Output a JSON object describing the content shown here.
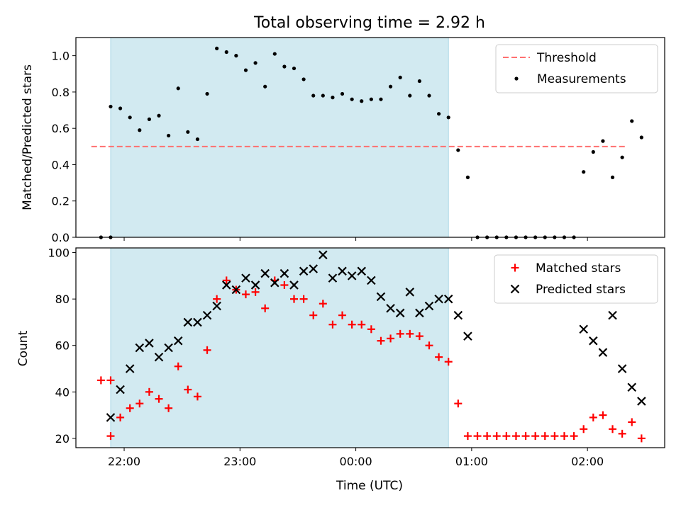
{
  "chart_data": [
    {
      "type": "scatter",
      "title": "Total observing time = 2.92 h",
      "xlabel": "",
      "ylabel": "Matched/Predicted stars",
      "ylim": [
        0,
        1.1
      ],
      "yticks": [
        0.0,
        0.2,
        0.4,
        0.6,
        0.8,
        1.0
      ],
      "ytick_labels": [
        "0.0",
        "0.2",
        "0.4",
        "0.6",
        "0.8",
        "1.0"
      ],
      "highlight_span": {
        "from": "21:53",
        "to": "00:48",
        "color": "#add8e6"
      },
      "threshold": {
        "name": "Threshold",
        "value": 0.5,
        "from": "21:43",
        "to": "02:20",
        "color": "#ff7070",
        "style": "dashed"
      },
      "legend": {
        "position": "top-right",
        "entries": [
          "Threshold",
          "Measurements"
        ]
      },
      "series": [
        {
          "name": "Measurements",
          "color": "#000000",
          "marker": "dot",
          "points": [
            [
              "21:48",
              0.0
            ],
            [
              "21:53",
              0.0
            ],
            [
              "21:53",
              0.72
            ],
            [
              "21:58",
              0.71
            ],
            [
              "22:03",
              0.66
            ],
            [
              "22:08",
              0.59
            ],
            [
              "22:13",
              0.65
            ],
            [
              "22:18",
              0.67
            ],
            [
              "22:23",
              0.56
            ],
            [
              "22:28",
              0.82
            ],
            [
              "22:33",
              0.58
            ],
            [
              "22:38",
              0.54
            ],
            [
              "22:43",
              0.79
            ],
            [
              "22:48",
              1.04
            ],
            [
              "22:53",
              1.02
            ],
            [
              "22:58",
              1.0
            ],
            [
              "23:03",
              0.92
            ],
            [
              "23:08",
              0.96
            ],
            [
              "23:13",
              0.83
            ],
            [
              "23:18",
              1.01
            ],
            [
              "23:23",
              0.94
            ],
            [
              "23:28",
              0.93
            ],
            [
              "23:33",
              0.87
            ],
            [
              "23:38",
              0.78
            ],
            [
              "23:43",
              0.78
            ],
            [
              "23:48",
              0.77
            ],
            [
              "23:53",
              0.79
            ],
            [
              "23:58",
              0.76
            ],
            [
              "00:03",
              0.75
            ],
            [
              "00:08",
              0.76
            ],
            [
              "00:13",
              0.76
            ],
            [
              "00:18",
              0.83
            ],
            [
              "00:23",
              0.88
            ],
            [
              "00:28",
              0.78
            ],
            [
              "00:33",
              0.86
            ],
            [
              "00:38",
              0.78
            ],
            [
              "00:43",
              0.68
            ],
            [
              "00:48",
              0.66
            ],
            [
              "00:53",
              0.48
            ],
            [
              "00:58",
              0.33
            ],
            [
              "01:03",
              0.0
            ],
            [
              "01:08",
              0.0
            ],
            [
              "01:13",
              0.0
            ],
            [
              "01:18",
              0.0
            ],
            [
              "01:23",
              0.0
            ],
            [
              "01:28",
              0.0
            ],
            [
              "01:33",
              0.0
            ],
            [
              "01:38",
              0.0
            ],
            [
              "01:43",
              0.0
            ],
            [
              "01:48",
              0.0
            ],
            [
              "01:53",
              0.0
            ],
            [
              "01:58",
              0.36
            ],
            [
              "02:03",
              0.47
            ],
            [
              "02:08",
              0.53
            ],
            [
              "02:13",
              0.33
            ],
            [
              "02:18",
              0.44
            ],
            [
              "02:23",
              0.64
            ],
            [
              "02:28",
              0.55
            ]
          ]
        }
      ]
    },
    {
      "type": "scatter",
      "title": "",
      "xlabel": "Time (UTC)",
      "ylabel": "Count",
      "ylim": [
        16,
        102
      ],
      "yticks": [
        20,
        40,
        60,
        80,
        100
      ],
      "ytick_labels": [
        "20",
        "40",
        "60",
        "80",
        "100"
      ],
      "xlim": [
        "21:35",
        "02:40"
      ],
      "xticks": [
        "22:00",
        "23:00",
        "00:00",
        "01:00",
        "02:00"
      ],
      "xtick_labels": [
        "22:00",
        "23:00",
        "00:00",
        "01:00",
        "02:00"
      ],
      "highlight_span": {
        "from": "21:53",
        "to": "00:48",
        "color": "#add8e6"
      },
      "legend": {
        "position": "top-right",
        "entries": [
          "Matched stars",
          "Predicted stars"
        ]
      },
      "series": [
        {
          "name": "Matched stars",
          "color": "#ff0000",
          "marker": "plus",
          "points": [
            [
              "21:48",
              45
            ],
            [
              "21:53",
              45
            ],
            [
              "21:53",
              21
            ],
            [
              "21:58",
              29
            ],
            [
              "22:03",
              33
            ],
            [
              "22:08",
              35
            ],
            [
              "22:13",
              40
            ],
            [
              "22:18",
              37
            ],
            [
              "22:23",
              33
            ],
            [
              "22:28",
              51
            ],
            [
              "22:33",
              41
            ],
            [
              "22:38",
              38
            ],
            [
              "22:43",
              58
            ],
            [
              "22:48",
              80
            ],
            [
              "22:53",
              88
            ],
            [
              "22:58",
              84
            ],
            [
              "23:03",
              82
            ],
            [
              "23:08",
              83
            ],
            [
              "23:13",
              76
            ],
            [
              "23:18",
              88
            ],
            [
              "23:23",
              86
            ],
            [
              "23:28",
              80
            ],
            [
              "23:33",
              80
            ],
            [
              "23:38",
              73
            ],
            [
              "23:43",
              78
            ],
            [
              "23:48",
              69
            ],
            [
              "23:53",
              73
            ],
            [
              "23:58",
              69
            ],
            [
              "00:03",
              69
            ],
            [
              "00:08",
              67
            ],
            [
              "00:13",
              62
            ],
            [
              "00:18",
              63
            ],
            [
              "00:23",
              65
            ],
            [
              "00:28",
              65
            ],
            [
              "00:33",
              64
            ],
            [
              "00:38",
              60
            ],
            [
              "00:43",
              55
            ],
            [
              "00:48",
              53
            ],
            [
              "00:53",
              35
            ],
            [
              "00:58",
              21
            ],
            [
              "01:03",
              21
            ],
            [
              "01:08",
              21
            ],
            [
              "01:13",
              21
            ],
            [
              "01:18",
              21
            ],
            [
              "01:23",
              21
            ],
            [
              "01:28",
              21
            ],
            [
              "01:33",
              21
            ],
            [
              "01:38",
              21
            ],
            [
              "01:43",
              21
            ],
            [
              "01:48",
              21
            ],
            [
              "01:53",
              21
            ],
            [
              "01:58",
              24
            ],
            [
              "02:03",
              29
            ],
            [
              "02:08",
              30
            ],
            [
              "02:13",
              24
            ],
            [
              "02:18",
              22
            ],
            [
              "02:23",
              27
            ],
            [
              "02:28",
              20
            ]
          ]
        },
        {
          "name": "Predicted stars",
          "color": "#000000",
          "marker": "x",
          "points": [
            [
              "21:53",
              29
            ],
            [
              "21:58",
              41
            ],
            [
              "22:03",
              50
            ],
            [
              "22:08",
              59
            ],
            [
              "22:13",
              61
            ],
            [
              "22:18",
              55
            ],
            [
              "22:23",
              59
            ],
            [
              "22:28",
              62
            ],
            [
              "22:33",
              70
            ],
            [
              "22:38",
              70
            ],
            [
              "22:43",
              73
            ],
            [
              "22:48",
              77
            ],
            [
              "22:53",
              86
            ],
            [
              "22:58",
              84
            ],
            [
              "23:03",
              89
            ],
            [
              "23:08",
              86
            ],
            [
              "23:13",
              91
            ],
            [
              "23:18",
              87
            ],
            [
              "23:23",
              91
            ],
            [
              "23:28",
              86
            ],
            [
              "23:33",
              92
            ],
            [
              "23:38",
              93
            ],
            [
              "23:43",
              99
            ],
            [
              "23:48",
              89
            ],
            [
              "23:53",
              92
            ],
            [
              "23:58",
              90
            ],
            [
              "00:03",
              92
            ],
            [
              "00:08",
              88
            ],
            [
              "00:13",
              81
            ],
            [
              "00:18",
              76
            ],
            [
              "00:23",
              74
            ],
            [
              "00:28",
              83
            ],
            [
              "00:33",
              74
            ],
            [
              "00:38",
              77
            ],
            [
              "00:43",
              80
            ],
            [
              "00:48",
              80
            ],
            [
              "00:53",
              73
            ],
            [
              "00:58",
              64
            ],
            [
              "01:58",
              67
            ],
            [
              "02:03",
              62
            ],
            [
              "02:08",
              57
            ],
            [
              "02:13",
              73
            ],
            [
              "02:18",
              50
            ],
            [
              "02:23",
              42
            ],
            [
              "02:28",
              36
            ]
          ]
        }
      ]
    }
  ]
}
